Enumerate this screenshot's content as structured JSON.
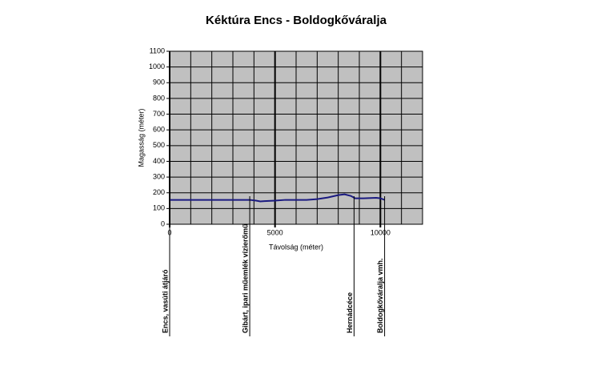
{
  "chart_data": {
    "type": "line",
    "title": "Kéktúra Encs - Boldogkőváralja",
    "x_label": "Távolság (méter)",
    "y_label": "Magasság (méter)",
    "xlim": [
      0,
      12000
    ],
    "xticks": [
      0,
      5000,
      10000
    ],
    "xgrid": [
      1000,
      2000,
      3000,
      4000,
      5000,
      6000,
      7000,
      8000,
      9000,
      10000,
      11000,
      12000
    ],
    "ylim": [
      0,
      1100
    ],
    "yticks": [
      0,
      100,
      200,
      300,
      400,
      500,
      600,
      700,
      800,
      900,
      1000,
      1100
    ],
    "grid": true,
    "plot_background": "#c0c0c0",
    "series": [
      {
        "name": "Magasság",
        "color": "#1a1a80",
        "x": [
          0,
          1000,
          2000,
          3000,
          3800,
          4100,
          4300,
          4500,
          5000,
          5500,
          6000,
          6500,
          7000,
          7500,
          8000,
          8300,
          8600,
          8800,
          9200,
          9800,
          10000,
          10200
        ],
        "values": [
          155,
          155,
          155,
          155,
          155,
          150,
          145,
          147,
          150,
          155,
          155,
          155,
          160,
          170,
          185,
          190,
          180,
          165,
          165,
          168,
          165,
          155
        ]
      }
    ],
    "annotations": [
      {
        "x": 0,
        "text": "Encs, vasúti átjáró"
      },
      {
        "x": 3800,
        "text": "Gibárt, ipari műemlék vízierőmű"
      },
      {
        "x": 8750,
        "text": "Hernádcéce"
      },
      {
        "x": 10200,
        "text": "Boldogkőváralja vmh."
      }
    ]
  }
}
